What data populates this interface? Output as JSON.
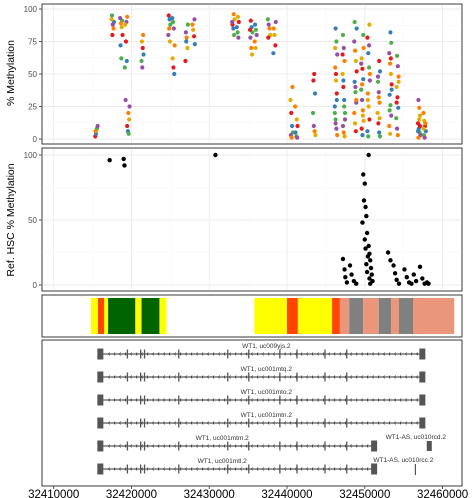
{
  "chart_data": [
    {
      "type": "scatter",
      "panel": "methylation",
      "ylabel": "% Methylation",
      "ylim": [
        0,
        100
      ],
      "yticks": [
        0,
        25,
        50,
        75,
        100
      ],
      "xlim": [
        32408500,
        32462500
      ],
      "grid": true,
      "colors": [
        "#e41a1c",
        "#377eb8",
        "#4daf4a",
        "#984ea3",
        "#ff7f00",
        "#e6ab02"
      ],
      "clusters": [
        {
          "x": 32415500,
          "values": [
            2,
            4,
            8,
            10,
            6
          ]
        },
        {
          "x": 32417600,
          "values": [
            90,
            95,
            88,
            85,
            92,
            80
          ]
        },
        {
          "x": 32418700,
          "values": [
            91,
            93,
            89,
            86,
            80,
            72,
            62
          ]
        },
        {
          "x": 32419300,
          "values": [
            90,
            94,
            88,
            75,
            60,
            55,
            30
          ]
        },
        {
          "x": 32419600,
          "values": [
            20,
            15,
            10,
            6,
            4,
            25
          ]
        },
        {
          "x": 32421400,
          "values": [
            75,
            70,
            65,
            60,
            55,
            80
          ]
        },
        {
          "x": 32424900,
          "values": [
            95,
            92,
            88,
            80,
            85,
            75
          ]
        },
        {
          "x": 32425400,
          "values": [
            93,
            90,
            85,
            72,
            62,
            55,
            50
          ]
        },
        {
          "x": 32427100,
          "values": [
            88,
            82,
            78,
            70,
            60,
            75
          ]
        },
        {
          "x": 32428000,
          "values": [
            92,
            88,
            84,
            79,
            73
          ]
        },
        {
          "x": 32433100,
          "values": [
            96,
            92,
            88,
            85,
            80,
            90
          ]
        },
        {
          "x": 32433700,
          "values": [
            94,
            90,
            86,
            82,
            78
          ]
        },
        {
          "x": 32435400,
          "values": [
            91,
            86,
            82,
            78,
            70,
            65,
            84
          ]
        },
        {
          "x": 32436000,
          "values": [
            88,
            84,
            80,
            75,
            70
          ]
        },
        {
          "x": 32437700,
          "values": [
            92,
            88,
            85,
            80,
            78
          ]
        },
        {
          "x": 32438400,
          "values": [
            90,
            85,
            80,
            72,
            66
          ]
        },
        {
          "x": 32440600,
          "values": [
            40,
            30,
            20,
            10,
            5,
            3,
            1
          ]
        },
        {
          "x": 32441200,
          "values": [
            15,
            10,
            5,
            2,
            1,
            25
          ]
        },
        {
          "x": 32443500,
          "values": [
            50,
            35,
            20,
            10,
            6,
            3,
            45
          ]
        },
        {
          "x": 32446300,
          "values": [
            85,
            75,
            65,
            55,
            45,
            35,
            25,
            15,
            8,
            3,
            70,
            50,
            30,
            20,
            12
          ]
        },
        {
          "x": 32447300,
          "values": [
            80,
            70,
            60,
            50,
            40,
            30,
            20,
            10,
            5,
            2,
            65,
            45,
            25,
            15
          ]
        },
        {
          "x": 32448800,
          "values": [
            75,
            68,
            60,
            52,
            44,
            36,
            28,
            20,
            12,
            6,
            85,
            90,
            40,
            30
          ]
        },
        {
          "x": 32449700,
          "values": [
            70,
            62,
            54,
            46,
            38,
            30,
            22,
            14,
            8,
            3,
            80,
            58,
            42,
            18
          ]
        },
        {
          "x": 32450500,
          "values": [
            88,
            78,
            66,
            55,
            45,
            35,
            25,
            15,
            6,
            2,
            72,
            50,
            30
          ]
        },
        {
          "x": 32451800,
          "values": [
            60,
            52,
            44,
            36,
            28,
            20,
            12,
            5,
            2,
            48,
            32,
            16
          ]
        },
        {
          "x": 32453300,
          "values": [
            82,
            74,
            66,
            58,
            50,
            42,
            34,
            26,
            18,
            10,
            4,
            62,
            38,
            22
          ]
        },
        {
          "x": 32454200,
          "values": [
            64,
            56,
            48,
            40,
            32,
            24,
            16,
            8,
            3,
            44,
            28
          ]
        },
        {
          "x": 32457000,
          "values": [
            30,
            24,
            18,
            12,
            8,
            5,
            3,
            1,
            15,
            10,
            6
          ]
        },
        {
          "x": 32457700,
          "values": [
            20,
            14,
            10,
            6,
            3,
            1,
            12,
            8
          ]
        }
      ]
    },
    {
      "type": "scatter",
      "panel": "reference",
      "ylabel": "Ref. HSC % Methylation",
      "ylim": [
        0,
        100
      ],
      "yticks": [
        0,
        50,
        100
      ],
      "xlim": [
        32408500,
        32462500
      ],
      "grid": true,
      "points": [
        {
          "x": 32417200,
          "y": 96
        },
        {
          "x": 32419000,
          "y": 97
        },
        {
          "x": 32419100,
          "y": 92
        },
        {
          "x": 32430800,
          "y": 100
        },
        {
          "x": 32447200,
          "y": 20
        },
        {
          "x": 32447400,
          "y": 12
        },
        {
          "x": 32447500,
          "y": 6
        },
        {
          "x": 32447700,
          "y": 2
        },
        {
          "x": 32448100,
          "y": 15
        },
        {
          "x": 32448300,
          "y": 8
        },
        {
          "x": 32448600,
          "y": 3
        },
        {
          "x": 32448900,
          "y": 1
        },
        {
          "x": 32449800,
          "y": 85
        },
        {
          "x": 32450000,
          "y": 78
        },
        {
          "x": 32449900,
          "y": 65
        },
        {
          "x": 32450100,
          "y": 60
        },
        {
          "x": 32450200,
          "y": 53
        },
        {
          "x": 32449700,
          "y": 48
        },
        {
          "x": 32450300,
          "y": 40
        },
        {
          "x": 32450000,
          "y": 35
        },
        {
          "x": 32450500,
          "y": 30
        },
        {
          "x": 32450100,
          "y": 28
        },
        {
          "x": 32450600,
          "y": 24
        },
        {
          "x": 32450400,
          "y": 22
        },
        {
          "x": 32450700,
          "y": 19
        },
        {
          "x": 32450200,
          "y": 16
        },
        {
          "x": 32450800,
          "y": 13
        },
        {
          "x": 32450300,
          "y": 10
        },
        {
          "x": 32450900,
          "y": 8
        },
        {
          "x": 32450600,
          "y": 5
        },
        {
          "x": 32451000,
          "y": 3
        },
        {
          "x": 32450700,
          "y": 1
        },
        {
          "x": 32450500,
          "y": 100
        },
        {
          "x": 32453000,
          "y": 25
        },
        {
          "x": 32453300,
          "y": 19
        },
        {
          "x": 32453700,
          "y": 15
        },
        {
          "x": 32453900,
          "y": 9
        },
        {
          "x": 32454100,
          "y": 4
        },
        {
          "x": 32454400,
          "y": 1
        },
        {
          "x": 32455100,
          "y": 12
        },
        {
          "x": 32455400,
          "y": 6
        },
        {
          "x": 32455700,
          "y": 2
        },
        {
          "x": 32456000,
          "y": 1
        },
        {
          "x": 32456300,
          "y": 8
        },
        {
          "x": 32456600,
          "y": 3
        },
        {
          "x": 32457100,
          "y": 14
        },
        {
          "x": 32457400,
          "y": 5
        },
        {
          "x": 32457700,
          "y": 1
        },
        {
          "x": 32458000,
          "y": 2
        },
        {
          "x": 32458200,
          "y": 1
        }
      ]
    },
    {
      "type": "heatmap",
      "panel": "chromatin-states",
      "xlim": [
        32408500,
        32462500
      ],
      "segments": [
        {
          "start": 32414800,
          "end": 32415700,
          "color": "#ffff00"
        },
        {
          "start": 32415700,
          "end": 32416500,
          "color": "#ff4500"
        },
        {
          "start": 32416500,
          "end": 32417000,
          "color": "#ffff00"
        },
        {
          "start": 32417000,
          "end": 32420500,
          "color": "#006400"
        },
        {
          "start": 32420500,
          "end": 32421300,
          "color": "#ffff00"
        },
        {
          "start": 32421300,
          "end": 32423600,
          "color": "#006400"
        },
        {
          "start": 32423600,
          "end": 32424500,
          "color": "#ffff00"
        },
        {
          "start": 32435800,
          "end": 32440000,
          "color": "#ffff00"
        },
        {
          "start": 32440000,
          "end": 32441400,
          "color": "#ff4500"
        },
        {
          "start": 32441400,
          "end": 32445800,
          "color": "#ffff00"
        },
        {
          "start": 32445800,
          "end": 32446800,
          "color": "#ff4500"
        },
        {
          "start": 32446800,
          "end": 32448000,
          "color": "#e9967a"
        },
        {
          "start": 32448000,
          "end": 32449800,
          "color": "#808080"
        },
        {
          "start": 32449800,
          "end": 32451800,
          "color": "#e9967a"
        },
        {
          "start": 32451800,
          "end": 32453400,
          "color": "#808080"
        },
        {
          "start": 32453400,
          "end": 32454400,
          "color": "#e9967a"
        },
        {
          "start": 32454400,
          "end": 32456200,
          "color": "#808080"
        },
        {
          "start": 32456200,
          "end": 32461500,
          "color": "#e9967a"
        }
      ]
    },
    {
      "type": "gene-track",
      "panel": "transcripts",
      "xlim": [
        32408500,
        32462500
      ],
      "xticks": [
        32410000,
        32420000,
        32430000,
        32440000,
        32450000,
        32460000
      ],
      "xtick_labels": [
        "32410000",
        "32420000",
        "32430000",
        "32440000",
        "32450000",
        "32460000"
      ],
      "transcripts": [
        {
          "label": "WT1, uc009yjs.2",
          "start": 32416000,
          "end": 32457400,
          "exons": [
            32416000,
            32419400,
            32421100,
            32421600,
            32426000,
            32432300,
            32435000,
            32439000,
            32441200,
            32444800,
            32447600,
            32457400
          ]
        },
        {
          "label": "WT1, uc001mtq.2",
          "start": 32416000,
          "end": 32457400,
          "exons": [
            32416000,
            32419400,
            32421100,
            32421600,
            32426000,
            32432300,
            32435000,
            32439000,
            32441200,
            32444800,
            32447600,
            32457400
          ]
        },
        {
          "label": "WT1, uc001mto.2",
          "start": 32416000,
          "end": 32457400,
          "exons": [
            32416000,
            32419400,
            32421100,
            32421600,
            32426000,
            32432300,
            32435000,
            32439000,
            32441200,
            32444800,
            32447600,
            32457400
          ]
        },
        {
          "label": "WT1, uc001mtn.2",
          "start": 32416000,
          "end": 32457400,
          "exons": [
            32416000,
            32419400,
            32421100,
            32421600,
            32426000,
            32432300,
            32435000,
            32439000,
            32441200,
            32444800,
            32447600,
            32457400
          ]
        },
        {
          "label": "WT1, uc001mtm.2",
          "start": 32416000,
          "end": 32451200,
          "exons": [
            32416000,
            32419400,
            32421100,
            32421600,
            32426000,
            32432300,
            32435000,
            32439000,
            32441200,
            32444800,
            32447600,
            32451200
          ]
        },
        {
          "label": "WT1, uc001mtl.2",
          "start": 32416000,
          "end": 32451200,
          "exons": [
            32416000,
            32419400,
            32421100,
            32421600,
            32426000,
            32432300,
            32435000,
            32439000,
            32441200,
            32444800,
            32447600,
            32451200
          ]
        }
      ],
      "antisense": [
        {
          "label": "WT1-AS, uc010rcd.2",
          "start": 32458100,
          "end": 32458700,
          "row": 4,
          "kind": "block"
        },
        {
          "label": "WT1-AS, uc010rcc.2",
          "start": 32456500,
          "end": 32456700,
          "row": 5,
          "kind": "line"
        }
      ]
    }
  ]
}
